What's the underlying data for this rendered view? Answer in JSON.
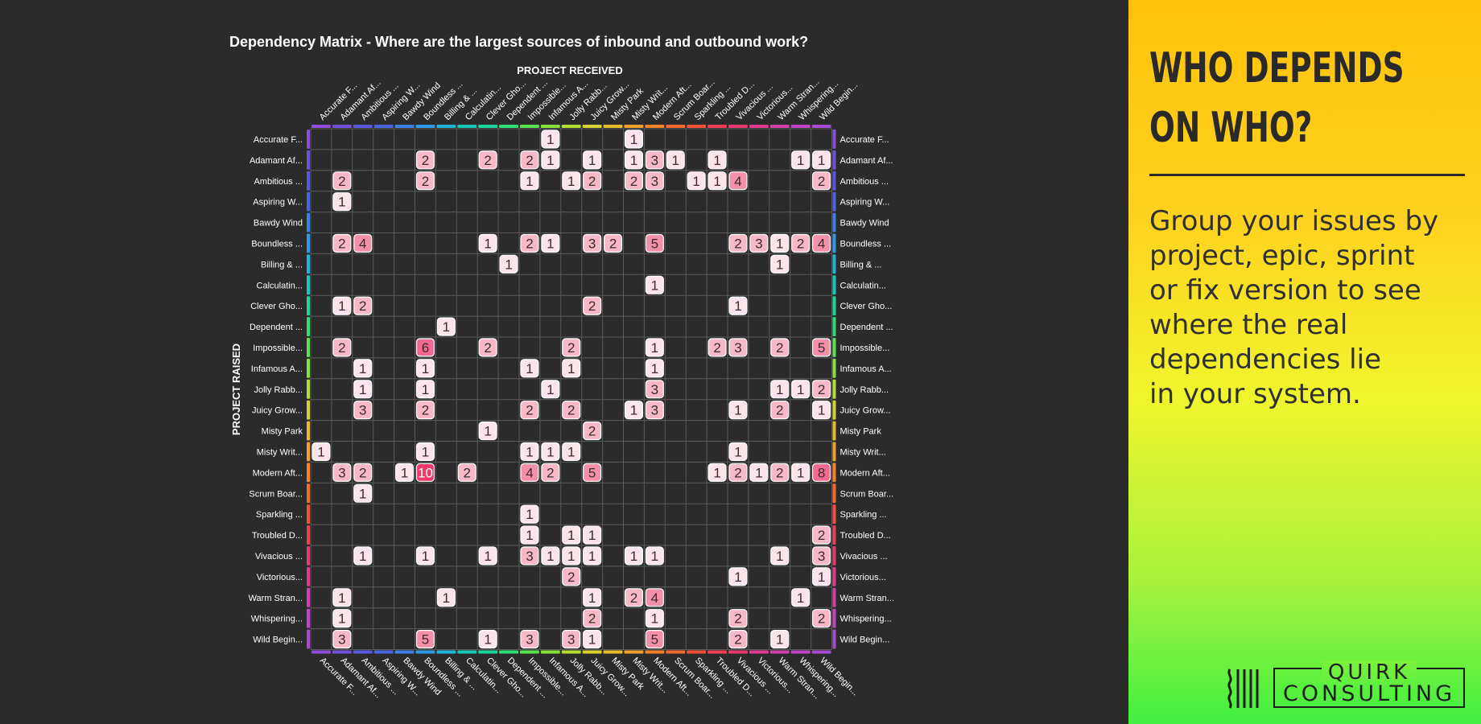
{
  "colors": {
    "background": "#2b2b2b",
    "grid": "#5a5a5a",
    "cell_fill": [
      "#fde4ea",
      "#f9b8c8",
      "#f590ab",
      "#f26a90",
      "#ee3a68"
    ],
    "project_colors": [
      "#8a4fd6",
      "#7050d8",
      "#5a57dc",
      "#4a64e0",
      "#3d7fe6",
      "#2e9ae4",
      "#21b3d8",
      "#19c8bc",
      "#1bd59a",
      "#2edd73",
      "#58e24f",
      "#86e23a",
      "#b3de34",
      "#d4d22f",
      "#e8bb2c",
      "#f1a02a",
      "#f48328",
      "#f46a2d",
      "#f25139",
      "#ee3f53",
      "#e8386f",
      "#df3a8d",
      "#d13fab",
      "#bd45c5",
      "#a84bd2"
    ]
  },
  "chart_data": {
    "type": "heatmap",
    "title": "Dependency Matrix - Where are the largest sources of inbound and outbound work?",
    "xlabel": "PROJECT RECEIVED",
    "ylabel": "PROJECT RAISED",
    "rows": [
      "Accurate F...",
      "Adamant Af...",
      "Ambitious ...",
      "Aspiring W...",
      "Bawdy Wind",
      "Boundless ...",
      "Billing & ...",
      "Calculatin...",
      "Clever Gho...",
      "Dependent ...",
      "Impossible...",
      "Infamous A...",
      "Jolly Rabb...",
      "Juicy Grow...",
      "Misty Park",
      "Misty Writ...",
      "Modern Aft...",
      "Scrum Boar...",
      "Sparkling ...",
      "Troubled D...",
      "Vivacious ...",
      "Victorious...",
      "Warm Stran...",
      "Whispering...",
      "Wild Begin..."
    ],
    "columns": [
      "Accurate F...",
      "Adamant Af...",
      "Ambitious ...",
      "Aspiring W...",
      "Bawdy Wind",
      "Boundless ...",
      "Billing & ...",
      "Calculatin...",
      "Clever Gho...",
      "Dependent ...",
      "Impossible...",
      "Infamous A...",
      "Jolly Rabb...",
      "Juicy Grow...",
      "Misty Park",
      "Misty Writ...",
      "Modern Aft...",
      "Scrum Boar...",
      "Sparkling ...",
      "Troubled D...",
      "Vivacious ...",
      "Victorious...",
      "Warm Stran...",
      "Whispering...",
      "Wild Begin..."
    ],
    "cells": [
      [
        0,
        11,
        1
      ],
      [
        0,
        15,
        1
      ],
      [
        1,
        5,
        2
      ],
      [
        1,
        8,
        2
      ],
      [
        1,
        10,
        2
      ],
      [
        1,
        11,
        1
      ],
      [
        1,
        13,
        1
      ],
      [
        1,
        15,
        1
      ],
      [
        1,
        16,
        3
      ],
      [
        1,
        17,
        1
      ],
      [
        1,
        19,
        1
      ],
      [
        1,
        23,
        1
      ],
      [
        1,
        24,
        1
      ],
      [
        2,
        1,
        2
      ],
      [
        2,
        5,
        2
      ],
      [
        2,
        10,
        1
      ],
      [
        2,
        12,
        1
      ],
      [
        2,
        13,
        2
      ],
      [
        2,
        15,
        2
      ],
      [
        2,
        16,
        3
      ],
      [
        2,
        18,
        1
      ],
      [
        2,
        19,
        1
      ],
      [
        2,
        20,
        4
      ],
      [
        2,
        24,
        2
      ],
      [
        3,
        1,
        1
      ],
      [
        5,
        1,
        2
      ],
      [
        5,
        2,
        4
      ],
      [
        5,
        8,
        1
      ],
      [
        5,
        10,
        2
      ],
      [
        5,
        11,
        1
      ],
      [
        5,
        13,
        3
      ],
      [
        5,
        14,
        2
      ],
      [
        5,
        16,
        5
      ],
      [
        5,
        20,
        2
      ],
      [
        5,
        21,
        3
      ],
      [
        5,
        22,
        1
      ],
      [
        5,
        23,
        2
      ],
      [
        5,
        24,
        4
      ],
      [
        6,
        9,
        1
      ],
      [
        6,
        22,
        1
      ],
      [
        7,
        16,
        1
      ],
      [
        8,
        1,
        1
      ],
      [
        8,
        2,
        2
      ],
      [
        8,
        13,
        2
      ],
      [
        8,
        20,
        1
      ],
      [
        9,
        6,
        1
      ],
      [
        10,
        1,
        2
      ],
      [
        10,
        5,
        6
      ],
      [
        10,
        8,
        2
      ],
      [
        10,
        12,
        2
      ],
      [
        10,
        16,
        1
      ],
      [
        10,
        19,
        2
      ],
      [
        10,
        20,
        3
      ],
      [
        10,
        22,
        2
      ],
      [
        10,
        24,
        5
      ],
      [
        11,
        2,
        1
      ],
      [
        11,
        5,
        1
      ],
      [
        11,
        10,
        1
      ],
      [
        11,
        12,
        1
      ],
      [
        11,
        16,
        1
      ],
      [
        12,
        2,
        1
      ],
      [
        12,
        5,
        1
      ],
      [
        12,
        11,
        1
      ],
      [
        12,
        16,
        3
      ],
      [
        12,
        22,
        1
      ],
      [
        12,
        23,
        1
      ],
      [
        12,
        24,
        2
      ],
      [
        13,
        2,
        3
      ],
      [
        13,
        5,
        2
      ],
      [
        13,
        10,
        2
      ],
      [
        13,
        12,
        2
      ],
      [
        13,
        15,
        1
      ],
      [
        13,
        16,
        3
      ],
      [
        13,
        20,
        1
      ],
      [
        13,
        22,
        2
      ],
      [
        13,
        24,
        1
      ],
      [
        14,
        8,
        1
      ],
      [
        14,
        13,
        2
      ],
      [
        15,
        0,
        1
      ],
      [
        15,
        5,
        1
      ],
      [
        15,
        10,
        1
      ],
      [
        15,
        11,
        1
      ],
      [
        15,
        12,
        1
      ],
      [
        15,
        20,
        1
      ],
      [
        16,
        1,
        3
      ],
      [
        16,
        2,
        2
      ],
      [
        16,
        4,
        1
      ],
      [
        16,
        5,
        10
      ],
      [
        16,
        7,
        2
      ],
      [
        16,
        10,
        4
      ],
      [
        16,
        11,
        2
      ],
      [
        16,
        13,
        5
      ],
      [
        16,
        19,
        1
      ],
      [
        16,
        20,
        2
      ],
      [
        16,
        21,
        1
      ],
      [
        16,
        22,
        2
      ],
      [
        16,
        23,
        1
      ],
      [
        16,
        24,
        8
      ],
      [
        17,
        2,
        1
      ],
      [
        18,
        10,
        1
      ],
      [
        19,
        10,
        1
      ],
      [
        19,
        12,
        1
      ],
      [
        19,
        13,
        1
      ],
      [
        19,
        24,
        2
      ],
      [
        20,
        2,
        1
      ],
      [
        20,
        5,
        1
      ],
      [
        20,
        8,
        1
      ],
      [
        20,
        10,
        3
      ],
      [
        20,
        11,
        1
      ],
      [
        20,
        12,
        1
      ],
      [
        20,
        13,
        1
      ],
      [
        20,
        15,
        1
      ],
      [
        20,
        16,
        1
      ],
      [
        20,
        22,
        1
      ],
      [
        20,
        24,
        3
      ],
      [
        21,
        12,
        2
      ],
      [
        21,
        20,
        1
      ],
      [
        21,
        24,
        1
      ],
      [
        22,
        1,
        1
      ],
      [
        22,
        6,
        1
      ],
      [
        22,
        13,
        1
      ],
      [
        22,
        15,
        2
      ],
      [
        22,
        16,
        4
      ],
      [
        22,
        23,
        1
      ],
      [
        23,
        1,
        1
      ],
      [
        23,
        13,
        2
      ],
      [
        23,
        16,
        1
      ],
      [
        23,
        20,
        2
      ],
      [
        23,
        24,
        2
      ],
      [
        24,
        1,
        3
      ],
      [
        24,
        5,
        5
      ],
      [
        24,
        8,
        1
      ],
      [
        24,
        10,
        3
      ],
      [
        24,
        12,
        3
      ],
      [
        24,
        13,
        1
      ],
      [
        24,
        16,
        5
      ],
      [
        24,
        20,
        2
      ],
      [
        24,
        22,
        1
      ]
    ],
    "value_range": [
      1,
      10
    ]
  },
  "sidebar": {
    "headline": [
      "WHO DEPENDS",
      "ON WHO?"
    ],
    "body": [
      "Group your issues by",
      "project, epic, sprint",
      "or fix version to see",
      "where the real",
      "dependencies lie",
      "in your system."
    ],
    "logo_word1": "QUIRK",
    "logo_word2": "CONSULTING"
  }
}
